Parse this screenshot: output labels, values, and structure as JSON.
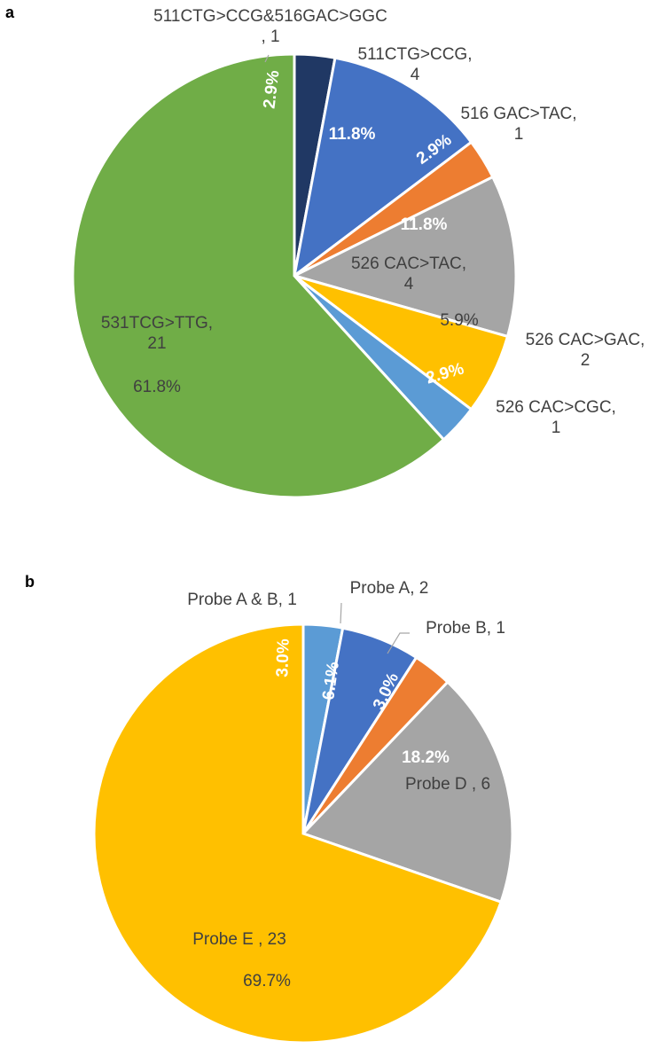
{
  "chart_data": [
    {
      "type": "pie",
      "panel": "a",
      "slices": [
        {
          "name": "511CTG>CCG&516GAC>GGC",
          "value": 1,
          "percent": "2.9%",
          "color": "#203864",
          "label": [
            "511CTG>CCG&516GAC>GGC",
            ", 1"
          ]
        },
        {
          "name": "511CTG>CCG",
          "value": 4,
          "percent": "11.8%",
          "color": "#4472C4",
          "label": [
            "511CTG>CCG,",
            "4"
          ]
        },
        {
          "name": "516 GAC>TAC",
          "value": 1,
          "percent": "2.9%",
          "color": "#ED7D31",
          "label": [
            "516 GAC>TAC,",
            "1"
          ]
        },
        {
          "name": "526 CAC>TAC",
          "value": 4,
          "percent": "11.8%",
          "color": "#A5A5A5",
          "label": [
            "526 CAC>TAC,",
            "4"
          ]
        },
        {
          "name": "526 CAC>GAC",
          "value": 2,
          "percent": "5.9%",
          "color": "#FFC000",
          "label": [
            "526 CAC>GAC,",
            "2"
          ]
        },
        {
          "name": "526 CAC>CGC",
          "value": 1,
          "percent": "2.9%",
          "color": "#5B9BD5",
          "label": [
            "526 CAC>CGC,",
            "1"
          ]
        },
        {
          "name": "531TCG>TTG",
          "value": 21,
          "percent": "61.8%",
          "color": "#70AD47",
          "label": [
            "531TCG>TTG,",
            "21"
          ]
        }
      ]
    },
    {
      "type": "pie",
      "panel": "b",
      "slices": [
        {
          "name": "Probe A & B",
          "value": 1,
          "percent": "3.0%",
          "color": "#5B9BD5",
          "label": [
            "Probe A & B, 1"
          ]
        },
        {
          "name": "Probe A",
          "value": 2,
          "percent": "6.1%",
          "color": "#4472C4",
          "label": [
            "Probe A, 2"
          ]
        },
        {
          "name": "Probe B",
          "value": 1,
          "percent": "3.0%",
          "color": "#ED7D31",
          "label": [
            "Probe B, 1"
          ]
        },
        {
          "name": "Probe D",
          "value": 6,
          "percent": "18.2%",
          "color": "#A5A5A5",
          "label": [
            "Probe D , 6"
          ]
        },
        {
          "name": "Probe E",
          "value": 23,
          "percent": "69.7%",
          "color": "#FFC000",
          "label": [
            "Probe E , 23"
          ]
        }
      ]
    }
  ]
}
